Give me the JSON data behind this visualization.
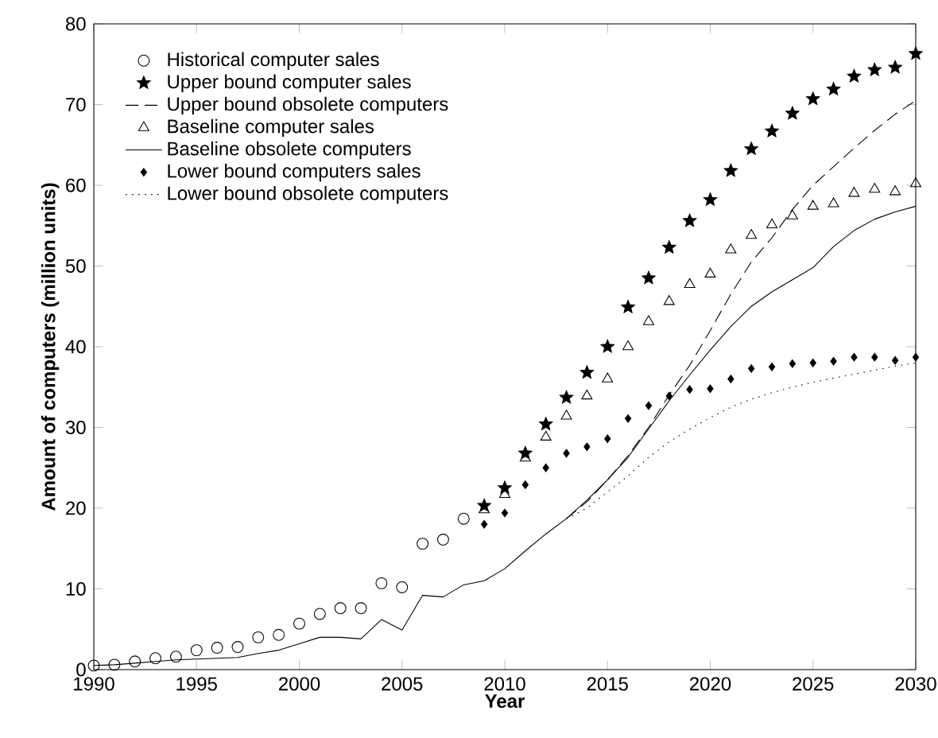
{
  "chart_data": {
    "type": "line",
    "xlabel": "Year",
    "ylabel": "Amount of computers (million units)",
    "xlim": [
      1990,
      2030
    ],
    "xticks": [
      1990,
      1995,
      2000,
      2005,
      2010,
      2015,
      2020,
      2025,
      2030
    ],
    "ylim": [
      0,
      80
    ],
    "yticks": [
      0,
      10,
      20,
      30,
      40,
      50,
      60,
      70,
      80
    ],
    "grid": false,
    "legend": "top left",
    "series": [
      {
        "name": "Historical computer sales",
        "type": "scatter",
        "marker": "circle",
        "color": "#000000",
        "x": [
          1990,
          1991,
          1992,
          1993,
          1994,
          1995,
          1996,
          1997,
          1998,
          1999,
          2000,
          2001,
          2002,
          2003,
          2004,
          2005,
          2006,
          2007,
          2008
        ],
        "values": [
          0.5,
          0.6,
          1.0,
          1.4,
          1.6,
          2.4,
          2.7,
          2.8,
          4.0,
          4.3,
          5.7,
          6.9,
          7.6,
          7.6,
          10.7,
          10.2,
          15.6,
          16.1,
          18.7
        ]
      },
      {
        "name": "Upper bound computer sales",
        "type": "scatter",
        "marker": "star",
        "color": "#000000",
        "x": [
          2009,
          2010,
          2011,
          2012,
          2013,
          2014,
          2015,
          2016,
          2017,
          2018,
          2019,
          2020,
          2021,
          2022,
          2023,
          2024,
          2025,
          2026,
          2027,
          2028,
          2029,
          2030
        ],
        "values": [
          20.3,
          22.5,
          26.8,
          30.4,
          33.7,
          36.8,
          40.0,
          44.9,
          48.5,
          52.3,
          55.6,
          58.2,
          61.8,
          64.5,
          66.7,
          68.9,
          70.7,
          71.9,
          73.5,
          74.3,
          74.6,
          76.3
        ]
      },
      {
        "name": "Upper bound obsolete computers",
        "marker": "none",
        "line_style": "dashed",
        "color": "#000000",
        "x": [
          2013,
          2014,
          2015,
          2016,
          2017,
          2018,
          2019,
          2020,
          2021,
          2022,
          2023,
          2024,
          2025,
          2026,
          2027,
          2028,
          2029,
          2030
        ],
        "values": [
          18.7,
          20.8,
          23.5,
          26.5,
          30.0,
          34.0,
          37.7,
          42.0,
          46.5,
          50.5,
          53.5,
          57.0,
          60.0,
          62.3,
          64.6,
          66.8,
          68.8,
          70.5
        ]
      },
      {
        "name": "Baseline computer sales",
        "type": "scatter",
        "marker": "triangle",
        "color": "#000000",
        "x": [
          2009,
          2010,
          2011,
          2012,
          2013,
          2014,
          2015,
          2016,
          2017,
          2018,
          2019,
          2020,
          2021,
          2022,
          2023,
          2024,
          2025,
          2026,
          2027,
          2028,
          2029,
          2030
        ],
        "values": [
          19.8,
          21.7,
          26.2,
          28.8,
          31.4,
          33.9,
          36.0,
          40.0,
          43.1,
          45.6,
          47.7,
          49.0,
          52.0,
          53.8,
          55.1,
          56.2,
          57.4,
          57.7,
          59.0,
          59.5,
          59.2,
          60.2
        ]
      },
      {
        "name": "Baseline obsolete computers",
        "marker": "none",
        "line_style": "solid",
        "color": "#000000",
        "x": [
          1990,
          1991,
          1992,
          1993,
          1994,
          1995,
          1996,
          1997,
          1998,
          1999,
          2000,
          2001,
          2002,
          2003,
          2004,
          2005,
          2006,
          2007,
          2008,
          2009,
          2010,
          2011,
          2012,
          2013,
          2014,
          2015,
          2016,
          2017,
          2018,
          2019,
          2020,
          2021,
          2022,
          2023,
          2024,
          2025,
          2026,
          2027,
          2028,
          2029,
          2030
        ],
        "values": [
          0.5,
          0.6,
          0.8,
          1.0,
          1.2,
          1.3,
          1.4,
          1.5,
          2.0,
          2.4,
          3.2,
          4.0,
          4.0,
          3.8,
          6.2,
          4.9,
          9.2,
          9.0,
          10.5,
          11.0,
          12.5,
          14.7,
          16.8,
          18.7,
          21.0,
          23.5,
          26.3,
          29.8,
          33.3,
          36.5,
          39.6,
          42.5,
          45.0,
          46.8,
          48.3,
          49.8,
          52.4,
          54.4,
          55.8,
          56.7,
          57.4
        ]
      },
      {
        "name": "Lower bound computers sales",
        "type": "scatter",
        "marker": "diamond",
        "color": "#000000",
        "x": [
          2009,
          2010,
          2011,
          2012,
          2013,
          2014,
          2015,
          2016,
          2017,
          2018,
          2019,
          2020,
          2021,
          2022,
          2023,
          2024,
          2025,
          2026,
          2027,
          2028,
          2029,
          2030
        ],
        "values": [
          18.0,
          19.4,
          22.9,
          25.0,
          26.8,
          27.6,
          28.6,
          31.1,
          32.7,
          33.9,
          34.7,
          34.8,
          36.0,
          37.3,
          37.5,
          37.9,
          38.0,
          38.2,
          38.7,
          38.7,
          38.3,
          38.7
        ]
      },
      {
        "name": "Lower bound obsolete computers",
        "marker": "none",
        "line_style": "dotted",
        "color": "#000000",
        "x": [
          2013,
          2014,
          2015,
          2016,
          2017,
          2018,
          2019,
          2020,
          2021,
          2022,
          2023,
          2024,
          2025,
          2026,
          2027,
          2028,
          2029,
          2030
        ],
        "values": [
          18.7,
          20.0,
          22.0,
          24.0,
          26.3,
          28.2,
          29.8,
          31.2,
          32.5,
          33.5,
          34.3,
          35.0,
          35.6,
          36.1,
          36.6,
          37.1,
          37.6,
          38.0
        ]
      }
    ]
  }
}
